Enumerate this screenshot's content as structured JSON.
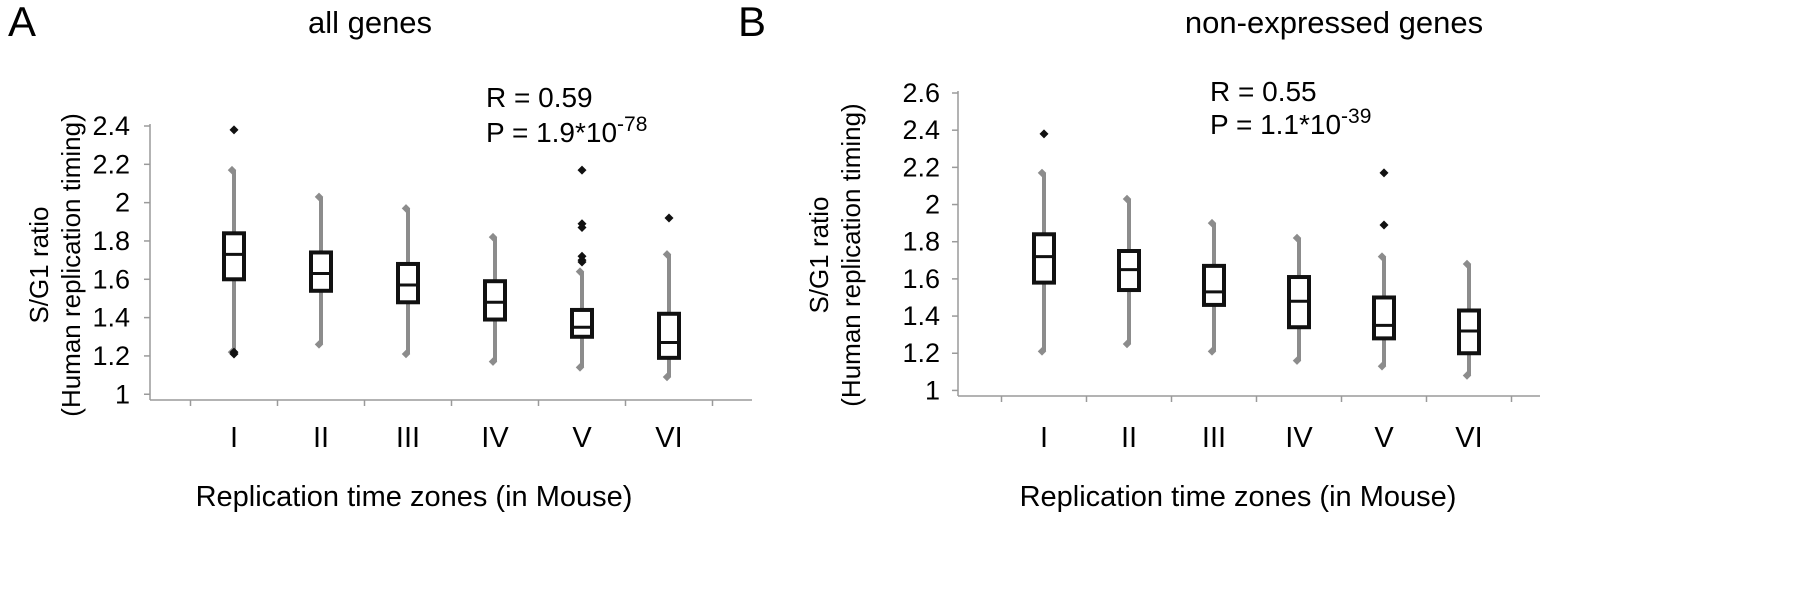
{
  "chart_data": [
    {
      "panel_label": "A",
      "type": "box",
      "title": "all genes",
      "xlabel": "Replication time zones (in Mouse)",
      "ylabel": "S/G1 ratio",
      "ylabel2": "(Human replication timing)",
      "ylim": [
        0.97,
        2.4
      ],
      "yticks": [
        "1",
        "1.2",
        "1.4",
        "1.6",
        "1.8",
        "2",
        "2.2",
        "2.4"
      ],
      "categories": [
        "I",
        "II",
        "III",
        "IV",
        "V",
        "VI"
      ],
      "annotation": {
        "r": "R = 0.59",
        "p_base": "P = 1.9*10",
        "p_exp": "-78"
      },
      "boxes": [
        {
          "whisker_low": 1.22,
          "q1": 1.6,
          "median": 1.73,
          "q3": 1.84,
          "whisker_high": 2.17,
          "outliers": [
            2.38,
            1.22,
            1.21
          ]
        },
        {
          "whisker_low": 1.26,
          "q1": 1.54,
          "median": 1.63,
          "q3": 1.74,
          "whisker_high": 2.03,
          "outliers": []
        },
        {
          "whisker_low": 1.21,
          "q1": 1.48,
          "median": 1.57,
          "q3": 1.68,
          "whisker_high": 1.97,
          "outliers": []
        },
        {
          "whisker_low": 1.17,
          "q1": 1.39,
          "median": 1.48,
          "q3": 1.59,
          "whisker_high": 1.82,
          "outliers": []
        },
        {
          "whisker_low": 1.14,
          "q1": 1.3,
          "median": 1.35,
          "q3": 1.44,
          "whisker_high": 1.64,
          "outliers": [
            2.17,
            1.89,
            1.87,
            1.72,
            1.7,
            1.69
          ]
        },
        {
          "whisker_low": 1.09,
          "q1": 1.19,
          "median": 1.27,
          "q3": 1.42,
          "whisker_high": 1.73,
          "outliers": [
            1.92
          ]
        }
      ]
    },
    {
      "panel_label": "B",
      "type": "box",
      "title": "non-expressed genes",
      "xlabel": "Replication time zones (in Mouse)",
      "ylabel": "S/G1 ratio",
      "ylabel2": "(Human replication timing)",
      "ylim": [
        0.97,
        2.6
      ],
      "yticks": [
        "1",
        "1.2",
        "1.4",
        "1.6",
        "1.8",
        "2",
        "2.2",
        "2.4",
        "2.6"
      ],
      "categories": [
        "I",
        "II",
        "III",
        "IV",
        "V",
        "VI"
      ],
      "annotation": {
        "r": "R = 0.55",
        "p_base": "P = 1.1*10",
        "p_exp": "-39"
      },
      "boxes": [
        {
          "whisker_low": 1.21,
          "q1": 1.58,
          "median": 1.72,
          "q3": 1.84,
          "whisker_high": 2.17,
          "outliers": [
            2.38
          ]
        },
        {
          "whisker_low": 1.25,
          "q1": 1.54,
          "median": 1.65,
          "q3": 1.75,
          "whisker_high": 2.03,
          "outliers": []
        },
        {
          "whisker_low": 1.21,
          "q1": 1.46,
          "median": 1.53,
          "q3": 1.67,
          "whisker_high": 1.9,
          "outliers": []
        },
        {
          "whisker_low": 1.16,
          "q1": 1.34,
          "median": 1.48,
          "q3": 1.61,
          "whisker_high": 1.82,
          "outliers": []
        },
        {
          "whisker_low": 1.13,
          "q1": 1.28,
          "median": 1.35,
          "q3": 1.5,
          "whisker_high": 1.72,
          "outliers": [
            2.17,
            1.89
          ]
        },
        {
          "whisker_low": 1.08,
          "q1": 1.2,
          "median": 1.32,
          "q3": 1.43,
          "whisker_high": 1.68,
          "outliers": []
        }
      ]
    }
  ]
}
